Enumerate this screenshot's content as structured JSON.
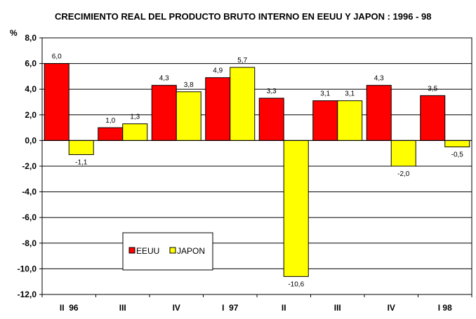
{
  "chart_data": {
    "type": "bar",
    "title": "CRECIMIENTO REAL DEL PRODUCTO BRUTO INTERNO EN EEUU Y JAPON : 1996 - 98",
    "ylabel": "%",
    "xlabel": "",
    "ylim": [
      -12,
      8
    ],
    "yticks": [
      8,
      6,
      4,
      2,
      0,
      -2,
      -4,
      -6,
      -8,
      -10,
      -12
    ],
    "ytick_labels": [
      "8,0",
      "6,0",
      "4,0",
      "2,0",
      "0,0",
      "-2,0",
      "-4,0",
      "-6,0",
      "-8,0",
      "-10,0",
      "-12,0"
    ],
    "grid": true,
    "categories": [
      "II  96",
      "III",
      "IV",
      "I  97",
      "II",
      "III",
      "IV",
      "I 98"
    ],
    "series": [
      {
        "name": "EEUU",
        "color": "#ff0000",
        "values": [
          6.0,
          1.0,
          4.3,
          4.9,
          3.3,
          3.1,
          4.3,
          3.5
        ],
        "labels": [
          "6,0",
          "1,0",
          "4,3",
          "4,9",
          "3,3",
          "3,1",
          "4,3",
          "3,5"
        ]
      },
      {
        "name": "JAPON",
        "color": "#ffff00",
        "values": [
          -1.1,
          1.3,
          3.8,
          5.7,
          -10.6,
          3.1,
          -2.0,
          -0.5
        ],
        "labels": [
          "-1,1",
          "1,3",
          "3,8",
          "5,7",
          "-10,6",
          "3,1",
          "-2,0",
          "-0,5"
        ]
      }
    ],
    "legend": {
      "position": "lower-left",
      "items": [
        "EEUU",
        "JAPON"
      ]
    }
  }
}
